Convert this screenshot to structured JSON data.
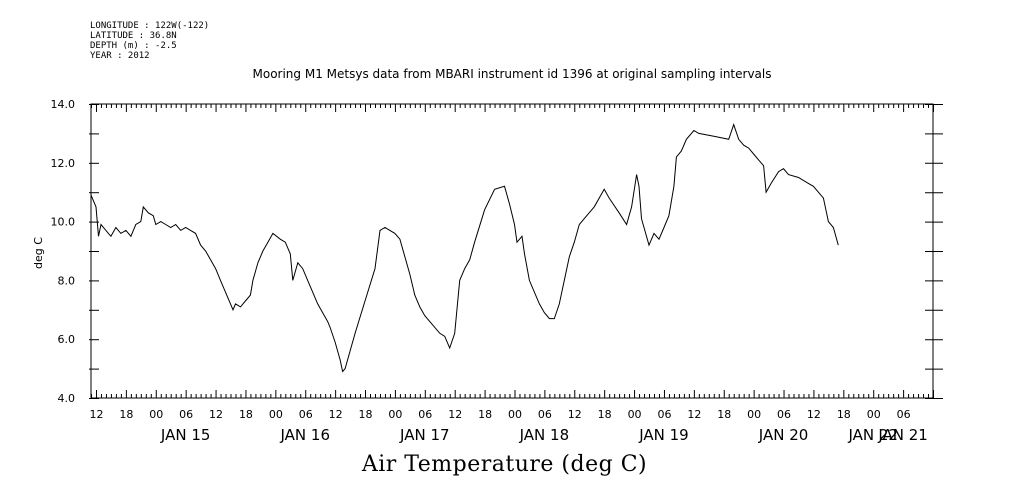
{
  "header": {
    "longitude": "LONGITUDE : 122W(-122)",
    "latitude": "LATITUDE : 36.8N",
    "depth": "DEPTH (m) : -2.5",
    "year": "YEAR : 2012"
  },
  "chart_data": {
    "type": "line",
    "title": "Mooring M1 Metsys data from MBARI instrument id 1396 at original sampling intervals",
    "xlabel": "Air Temperature (deg C)",
    "ylabel": "deg C",
    "ylim": [
      4.0,
      14.0
    ],
    "yticks": [
      "4.0",
      "6.0",
      "8.0",
      "10.0",
      "12.0",
      "14.0"
    ],
    "x_unit": "hours since JAN 15 00:00",
    "xlim": [
      -7,
      162
    ],
    "hour_tick_labels": [
      "12",
      "18",
      "00",
      "06",
      "12",
      "18",
      "00",
      "06",
      "12",
      "18",
      "00",
      "06",
      "12",
      "18",
      "00",
      "06",
      "12",
      "18",
      "00",
      "06",
      "12",
      "18",
      "00",
      "06",
      "12",
      "18",
      "00",
      "06"
    ],
    "day_labels": [
      "JAN 15",
      "JAN 16",
      "JAN 17",
      "JAN 18",
      "JAN 19",
      "JAN 20",
      "JAN 21",
      "JAN 22"
    ],
    "grid": false,
    "series": [
      {
        "values": [
          [
            -7,
            10.9
          ],
          [
            -6,
            10.5
          ],
          [
            -5.5,
            9.5
          ],
          [
            -5,
            9.9
          ],
          [
            -4,
            9.7
          ],
          [
            -3,
            9.5
          ],
          [
            -2,
            9.8
          ],
          [
            -1,
            9.6
          ],
          [
            0,
            9.7
          ],
          [
            1,
            9.5
          ],
          [
            2,
            9.9
          ],
          [
            3,
            10.0
          ],
          [
            3.5,
            10.5
          ],
          [
            4.5,
            10.3
          ],
          [
            5.5,
            10.2
          ],
          [
            6,
            9.9
          ],
          [
            7,
            10.0
          ],
          [
            8,
            9.9
          ],
          [
            9,
            9.8
          ],
          [
            10,
            9.9
          ],
          [
            11,
            9.7
          ],
          [
            12,
            9.8
          ],
          [
            13,
            9.7
          ],
          [
            14,
            9.6
          ],
          [
            15,
            9.2
          ],
          [
            16,
            9.0
          ],
          [
            17,
            8.7
          ],
          [
            18,
            8.4
          ],
          [
            19,
            8.0
          ],
          [
            20,
            7.6
          ],
          [
            21,
            7.2
          ],
          [
            21.5,
            7.0
          ],
          [
            22,
            7.2
          ],
          [
            23,
            7.1
          ],
          [
            24,
            7.3
          ],
          [
            25,
            7.5
          ],
          [
            25.5,
            8.0
          ],
          [
            26.5,
            8.6
          ],
          [
            27.5,
            9.0
          ],
          [
            28.5,
            9.3
          ],
          [
            29.5,
            9.6
          ],
          [
            31,
            9.4
          ],
          [
            32,
            9.3
          ],
          [
            33,
            8.9
          ],
          [
            33.5,
            8.0
          ],
          [
            34.5,
            8.6
          ],
          [
            35.5,
            8.4
          ],
          [
            36.5,
            8.0
          ],
          [
            37.5,
            7.6
          ],
          [
            38.5,
            7.2
          ],
          [
            39.5,
            6.9
          ],
          [
            40.5,
            6.6
          ],
          [
            41,
            6.4
          ],
          [
            42,
            5.9
          ],
          [
            43,
            5.3
          ],
          [
            43.5,
            4.9
          ],
          [
            44,
            5.0
          ],
          [
            46,
            6.2
          ],
          [
            48,
            7.3
          ],
          [
            50,
            8.4
          ],
          [
            51,
            9.7
          ],
          [
            52,
            9.8
          ],
          [
            53,
            9.7
          ],
          [
            54,
            9.6
          ],
          [
            55,
            9.4
          ],
          [
            56,
            8.8
          ],
          [
            57,
            8.2
          ],
          [
            58,
            7.5
          ],
          [
            59,
            7.1
          ],
          [
            60,
            6.8
          ],
          [
            61,
            6.6
          ],
          [
            62,
            6.4
          ],
          [
            63,
            6.2
          ],
          [
            64,
            6.1
          ],
          [
            65,
            5.7
          ],
          [
            66,
            6.2
          ],
          [
            67,
            8.0
          ],
          [
            68,
            8.4
          ],
          [
            69,
            8.7
          ],
          [
            70,
            9.3
          ],
          [
            72,
            10.4
          ],
          [
            74,
            11.1
          ],
          [
            76,
            11.2
          ],
          [
            77,
            10.6
          ],
          [
            78,
            9.9
          ],
          [
            78.5,
            9.3
          ],
          [
            79.5,
            9.5
          ],
          [
            80,
            8.9
          ],
          [
            81,
            8.0
          ],
          [
            82,
            7.6
          ],
          [
            83,
            7.2
          ],
          [
            84,
            6.9
          ],
          [
            85,
            6.7
          ],
          [
            86,
            6.7
          ],
          [
            87,
            7.2
          ],
          [
            88,
            8.0
          ],
          [
            89,
            8.8
          ],
          [
            90,
            9.3
          ],
          [
            91,
            9.9
          ],
          [
            92,
            10.1
          ],
          [
            94,
            10.5
          ],
          [
            96,
            11.1
          ],
          [
            97,
            10.8
          ],
          [
            99,
            10.3
          ],
          [
            100.5,
            9.9
          ],
          [
            101.5,
            10.5
          ],
          [
            102.5,
            11.6
          ],
          [
            103,
            11.2
          ],
          [
            103.5,
            10.1
          ],
          [
            104.5,
            9.5
          ],
          [
            105,
            9.2
          ],
          [
            106,
            9.6
          ],
          [
            107,
            9.4
          ],
          [
            108,
            9.8
          ],
          [
            109,
            10.2
          ],
          [
            110,
            11.2
          ],
          [
            110.5,
            12.2
          ],
          [
            111.5,
            12.4
          ],
          [
            112.5,
            12.8
          ],
          [
            114,
            13.1
          ],
          [
            115,
            13.0
          ],
          [
            118,
            12.9
          ],
          [
            121,
            12.8
          ],
          [
            122,
            13.3
          ],
          [
            123,
            12.8
          ],
          [
            124,
            12.6
          ],
          [
            125,
            12.5
          ],
          [
            126,
            12.3
          ],
          [
            127,
            12.1
          ],
          [
            128,
            11.9
          ],
          [
            128.5,
            11.0
          ],
          [
            129.5,
            11.3
          ],
          [
            131,
            11.7
          ],
          [
            132,
            11.8
          ],
          [
            133,
            11.6
          ],
          [
            135,
            11.5
          ],
          [
            137,
            11.3
          ],
          [
            138,
            11.2
          ],
          [
            139,
            11.0
          ],
          [
            140,
            10.8
          ],
          [
            140.5,
            10.4
          ],
          [
            141,
            10.0
          ],
          [
            142,
            9.8
          ],
          [
            142.5,
            9.5
          ],
          [
            143,
            9.2
          ]
        ]
      }
    ]
  }
}
